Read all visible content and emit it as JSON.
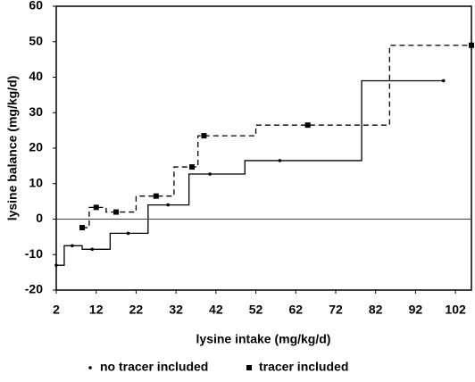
{
  "chart_data": {
    "type": "step",
    "x_label": "lysine intake (mg/kg/d)",
    "y_label": "lysine balance (mg/kg/d)",
    "xlim": [
      2,
      106
    ],
    "ylim": [
      -20,
      60
    ],
    "xticks": [
      2,
      12,
      22,
      32,
      42,
      52,
      62,
      72,
      82,
      92,
      102
    ],
    "yticks": [
      -20,
      -10,
      0,
      10,
      20,
      30,
      40,
      50,
      60
    ],
    "zero_line": true,
    "series": [
      {
        "name": "no tracer included",
        "color": "#000000",
        "dash": false,
        "marker": "dot",
        "x": [
          2,
          6,
          11,
          20,
          30,
          40.5,
          58,
          99
        ],
        "values": [
          -13,
          -7.5,
          -8.5,
          -4,
          4,
          12.7,
          16.5,
          39
        ]
      },
      {
        "name": "tracer included",
        "color": "#000000",
        "dash": true,
        "marker": "square",
        "x": [
          8.5,
          12,
          17,
          27,
          36,
          39,
          65,
          106
        ],
        "values": [
          -2.4,
          3.3,
          2,
          6.5,
          14.7,
          23.5,
          26.5,
          49
        ]
      }
    ]
  }
}
